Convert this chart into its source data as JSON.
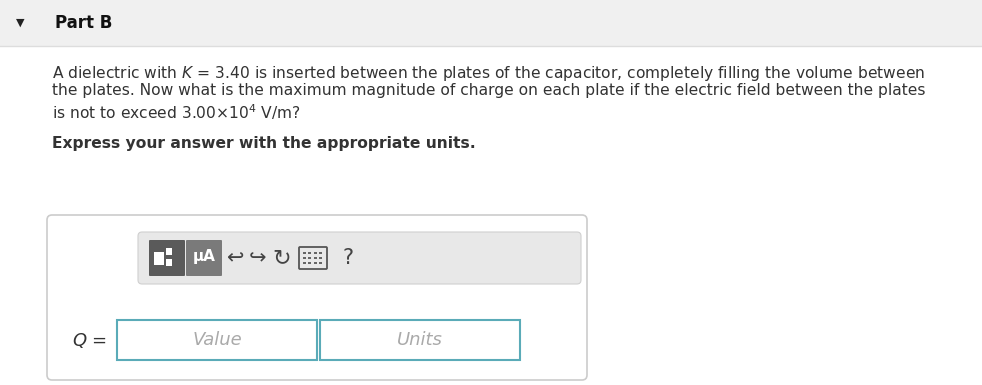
{
  "part_label": "Part B",
  "arrow_char": "▼",
  "body_line1": "A dielectric with $\\mathit{K}$ = 3.40 is inserted between the plates of the capacitor, completely filling the volume between",
  "body_line2": "the plates. Now what is the maximum magnitude of charge on each plate if the electric field between the plates",
  "body_line3": "is not to exceed 3.00×10$^{4}$ V/m?",
  "bold_text": "Express your answer with the appropriate units.",
  "unit_label": "μA",
  "q_label": "$Q$ =",
  "value_placeholder": "Value",
  "units_placeholder": "Units",
  "white": "#ffffff",
  "part_bg": "#f0f0f0",
  "toolbar_bg": "#e8e8e8",
  "icon_dark": "#666666",
  "icon_mid": "#888888",
  "icon_light": "#aaaaaa",
  "border_color": "#cccccc",
  "input_border": "#5aabb8",
  "text_color": "#333333",
  "placeholder_color": "#aaaaaa",
  "separator_color": "#dddddd"
}
